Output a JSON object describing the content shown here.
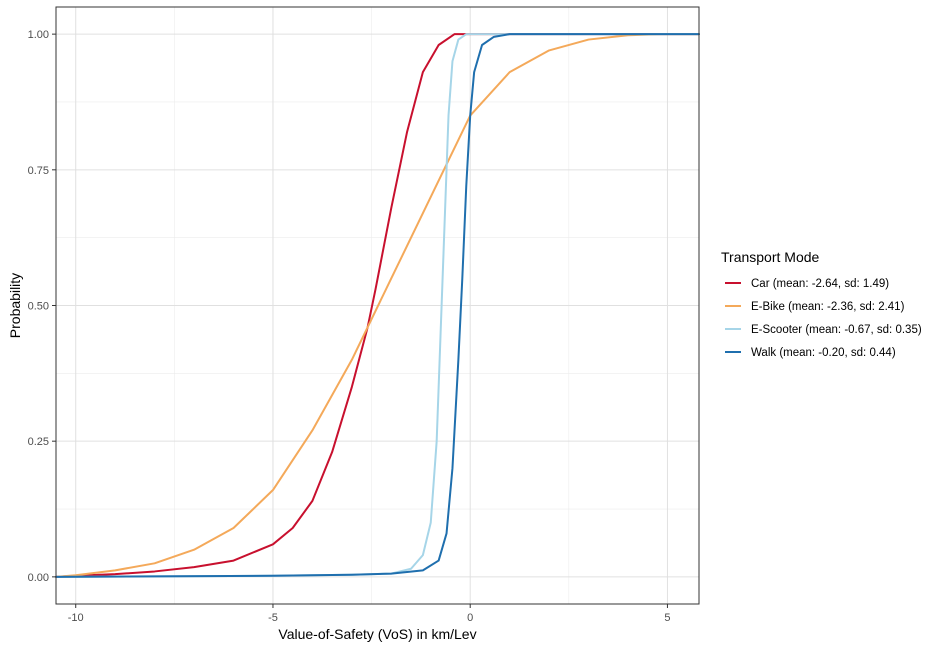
{
  "chart_data": {
    "type": "line",
    "title": "",
    "xlabel": "Value-of-Safety (VoS) in km/Lev",
    "ylabel": "Probability",
    "xlim": [
      -10.5,
      5.8
    ],
    "ylim": [
      -0.05,
      1.05
    ],
    "x_ticks": [
      -10,
      -5,
      0,
      5
    ],
    "x_tick_labels": [
      "-10",
      "-5",
      "0",
      "5"
    ],
    "y_ticks": [
      0,
      0.25,
      0.5,
      0.75,
      1.0
    ],
    "y_tick_labels": [
      "0.00",
      "0.25",
      "0.50",
      "0.75",
      "1.00"
    ],
    "grid": true,
    "legend": {
      "title": "Transport Mode",
      "placement": "right"
    },
    "series": [
      {
        "name": "Car (mean: -2.64, sd: 1.49)",
        "color": "#c8102e",
        "points": [
          [
            -10.5,
            0.0
          ],
          [
            -10.0,
            0.002
          ],
          [
            -9.0,
            0.005
          ],
          [
            -8.0,
            0.01
          ],
          [
            -7.0,
            0.018
          ],
          [
            -6.0,
            0.03
          ],
          [
            -5.0,
            0.06
          ],
          [
            -4.5,
            0.09
          ],
          [
            -4.0,
            0.14
          ],
          [
            -3.5,
            0.23
          ],
          [
            -3.0,
            0.35
          ],
          [
            -2.6,
            0.46
          ],
          [
            -2.4,
            0.53
          ],
          [
            -2.0,
            0.68
          ],
          [
            -1.6,
            0.82
          ],
          [
            -1.2,
            0.93
          ],
          [
            -0.8,
            0.98
          ],
          [
            -0.4,
            1.0
          ],
          [
            5.8,
            1.0
          ]
        ]
      },
      {
        "name": "E-Bike (mean: -2.36, sd: 2.41)",
        "color": "#f4a95a",
        "points": [
          [
            -10.5,
            0.0
          ],
          [
            -10.0,
            0.003
          ],
          [
            -9.0,
            0.012
          ],
          [
            -8.0,
            0.025
          ],
          [
            -7.0,
            0.05
          ],
          [
            -6.0,
            0.09
          ],
          [
            -5.0,
            0.16
          ],
          [
            -4.0,
            0.27
          ],
          [
            -3.0,
            0.4
          ],
          [
            -2.0,
            0.55
          ],
          [
            -1.0,
            0.7
          ],
          [
            0.0,
            0.85
          ],
          [
            1.0,
            0.93
          ],
          [
            2.0,
            0.97
          ],
          [
            3.0,
            0.99
          ],
          [
            4.0,
            0.998
          ],
          [
            4.8,
            1.0
          ],
          [
            5.8,
            1.0
          ]
        ]
      },
      {
        "name": "E-Scooter (mean: -0.67, sd: 0.35)",
        "color": "#a6d5e8",
        "points": [
          [
            -10.5,
            0.0
          ],
          [
            -8.0,
            0.001
          ],
          [
            -5.0,
            0.002
          ],
          [
            -3.0,
            0.004
          ],
          [
            -2.0,
            0.006
          ],
          [
            -1.5,
            0.015
          ],
          [
            -1.2,
            0.04
          ],
          [
            -1.0,
            0.1
          ],
          [
            -0.85,
            0.25
          ],
          [
            -0.75,
            0.45
          ],
          [
            -0.65,
            0.65
          ],
          [
            -0.55,
            0.85
          ],
          [
            -0.45,
            0.95
          ],
          [
            -0.3,
            0.99
          ],
          [
            -0.1,
            1.0
          ],
          [
            5.8,
            1.0
          ]
        ]
      },
      {
        "name": "Walk (mean: -0.20, sd: 0.44)",
        "color": "#1f6fae",
        "points": [
          [
            -10.5,
            0.0
          ],
          [
            -8.0,
            0.001
          ],
          [
            -5.0,
            0.002
          ],
          [
            -3.0,
            0.004
          ],
          [
            -2.0,
            0.006
          ],
          [
            -1.2,
            0.012
          ],
          [
            -0.8,
            0.03
          ],
          [
            -0.6,
            0.08
          ],
          [
            -0.45,
            0.2
          ],
          [
            -0.3,
            0.4
          ],
          [
            -0.2,
            0.55
          ],
          [
            -0.1,
            0.72
          ],
          [
            0.0,
            0.85
          ],
          [
            0.1,
            0.93
          ],
          [
            0.3,
            0.98
          ],
          [
            0.6,
            0.995
          ],
          [
            1.0,
            1.0
          ],
          [
            5.8,
            1.0
          ]
        ]
      }
    ]
  }
}
